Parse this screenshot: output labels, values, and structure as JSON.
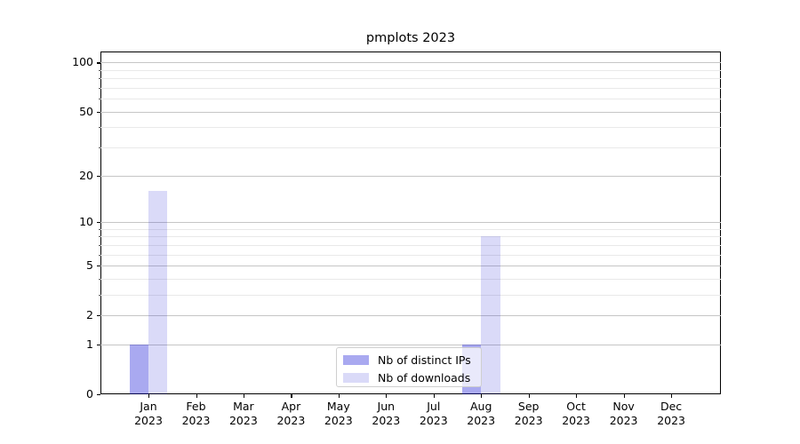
{
  "title": "pmplots 2023",
  "chart_data": {
    "type": "bar",
    "title": "pmplots 2023",
    "categories": [
      "Jan",
      "Feb",
      "Mar",
      "Apr",
      "May",
      "Jun",
      "Jul",
      "Aug",
      "Sep",
      "Oct",
      "Nov",
      "Dec"
    ],
    "category_year": "2023",
    "series": [
      {
        "name": "Nb of distinct IPs",
        "color": "rgba(22,22,214,0.37)",
        "solid_color": "#a8a8f0",
        "values": [
          1,
          0,
          0,
          0,
          0,
          0,
          0,
          1,
          0,
          0,
          0,
          0
        ]
      },
      {
        "name": "Nb of downloads",
        "color": "rgba(22,22,214,0.16)",
        "solid_color": "#dbdbf7",
        "values": [
          16,
          0,
          0,
          0,
          0,
          0,
          0,
          8,
          0,
          0,
          0,
          0
        ]
      }
    ],
    "y_axis": {
      "scale": "log1p",
      "ticks": [
        0,
        1,
        2,
        5,
        10,
        20,
        50,
        100
      ],
      "tick_labels": [
        "0",
        "1",
        "2",
        "5",
        "10",
        "20",
        "50",
        "100"
      ],
      "minor_gridlines": [
        3,
        4,
        6,
        7,
        8,
        9,
        30,
        40,
        60,
        70,
        80,
        90
      ],
      "max": 116
    },
    "x_axis": {
      "label_lines": 2
    },
    "grid": {
      "major_color": "#c6c6c6",
      "minor_color": "#e9e9e9"
    },
    "legend": {
      "position": "lower center",
      "entries": [
        "Nb of distinct IPs",
        "Nb of downloads"
      ]
    }
  }
}
